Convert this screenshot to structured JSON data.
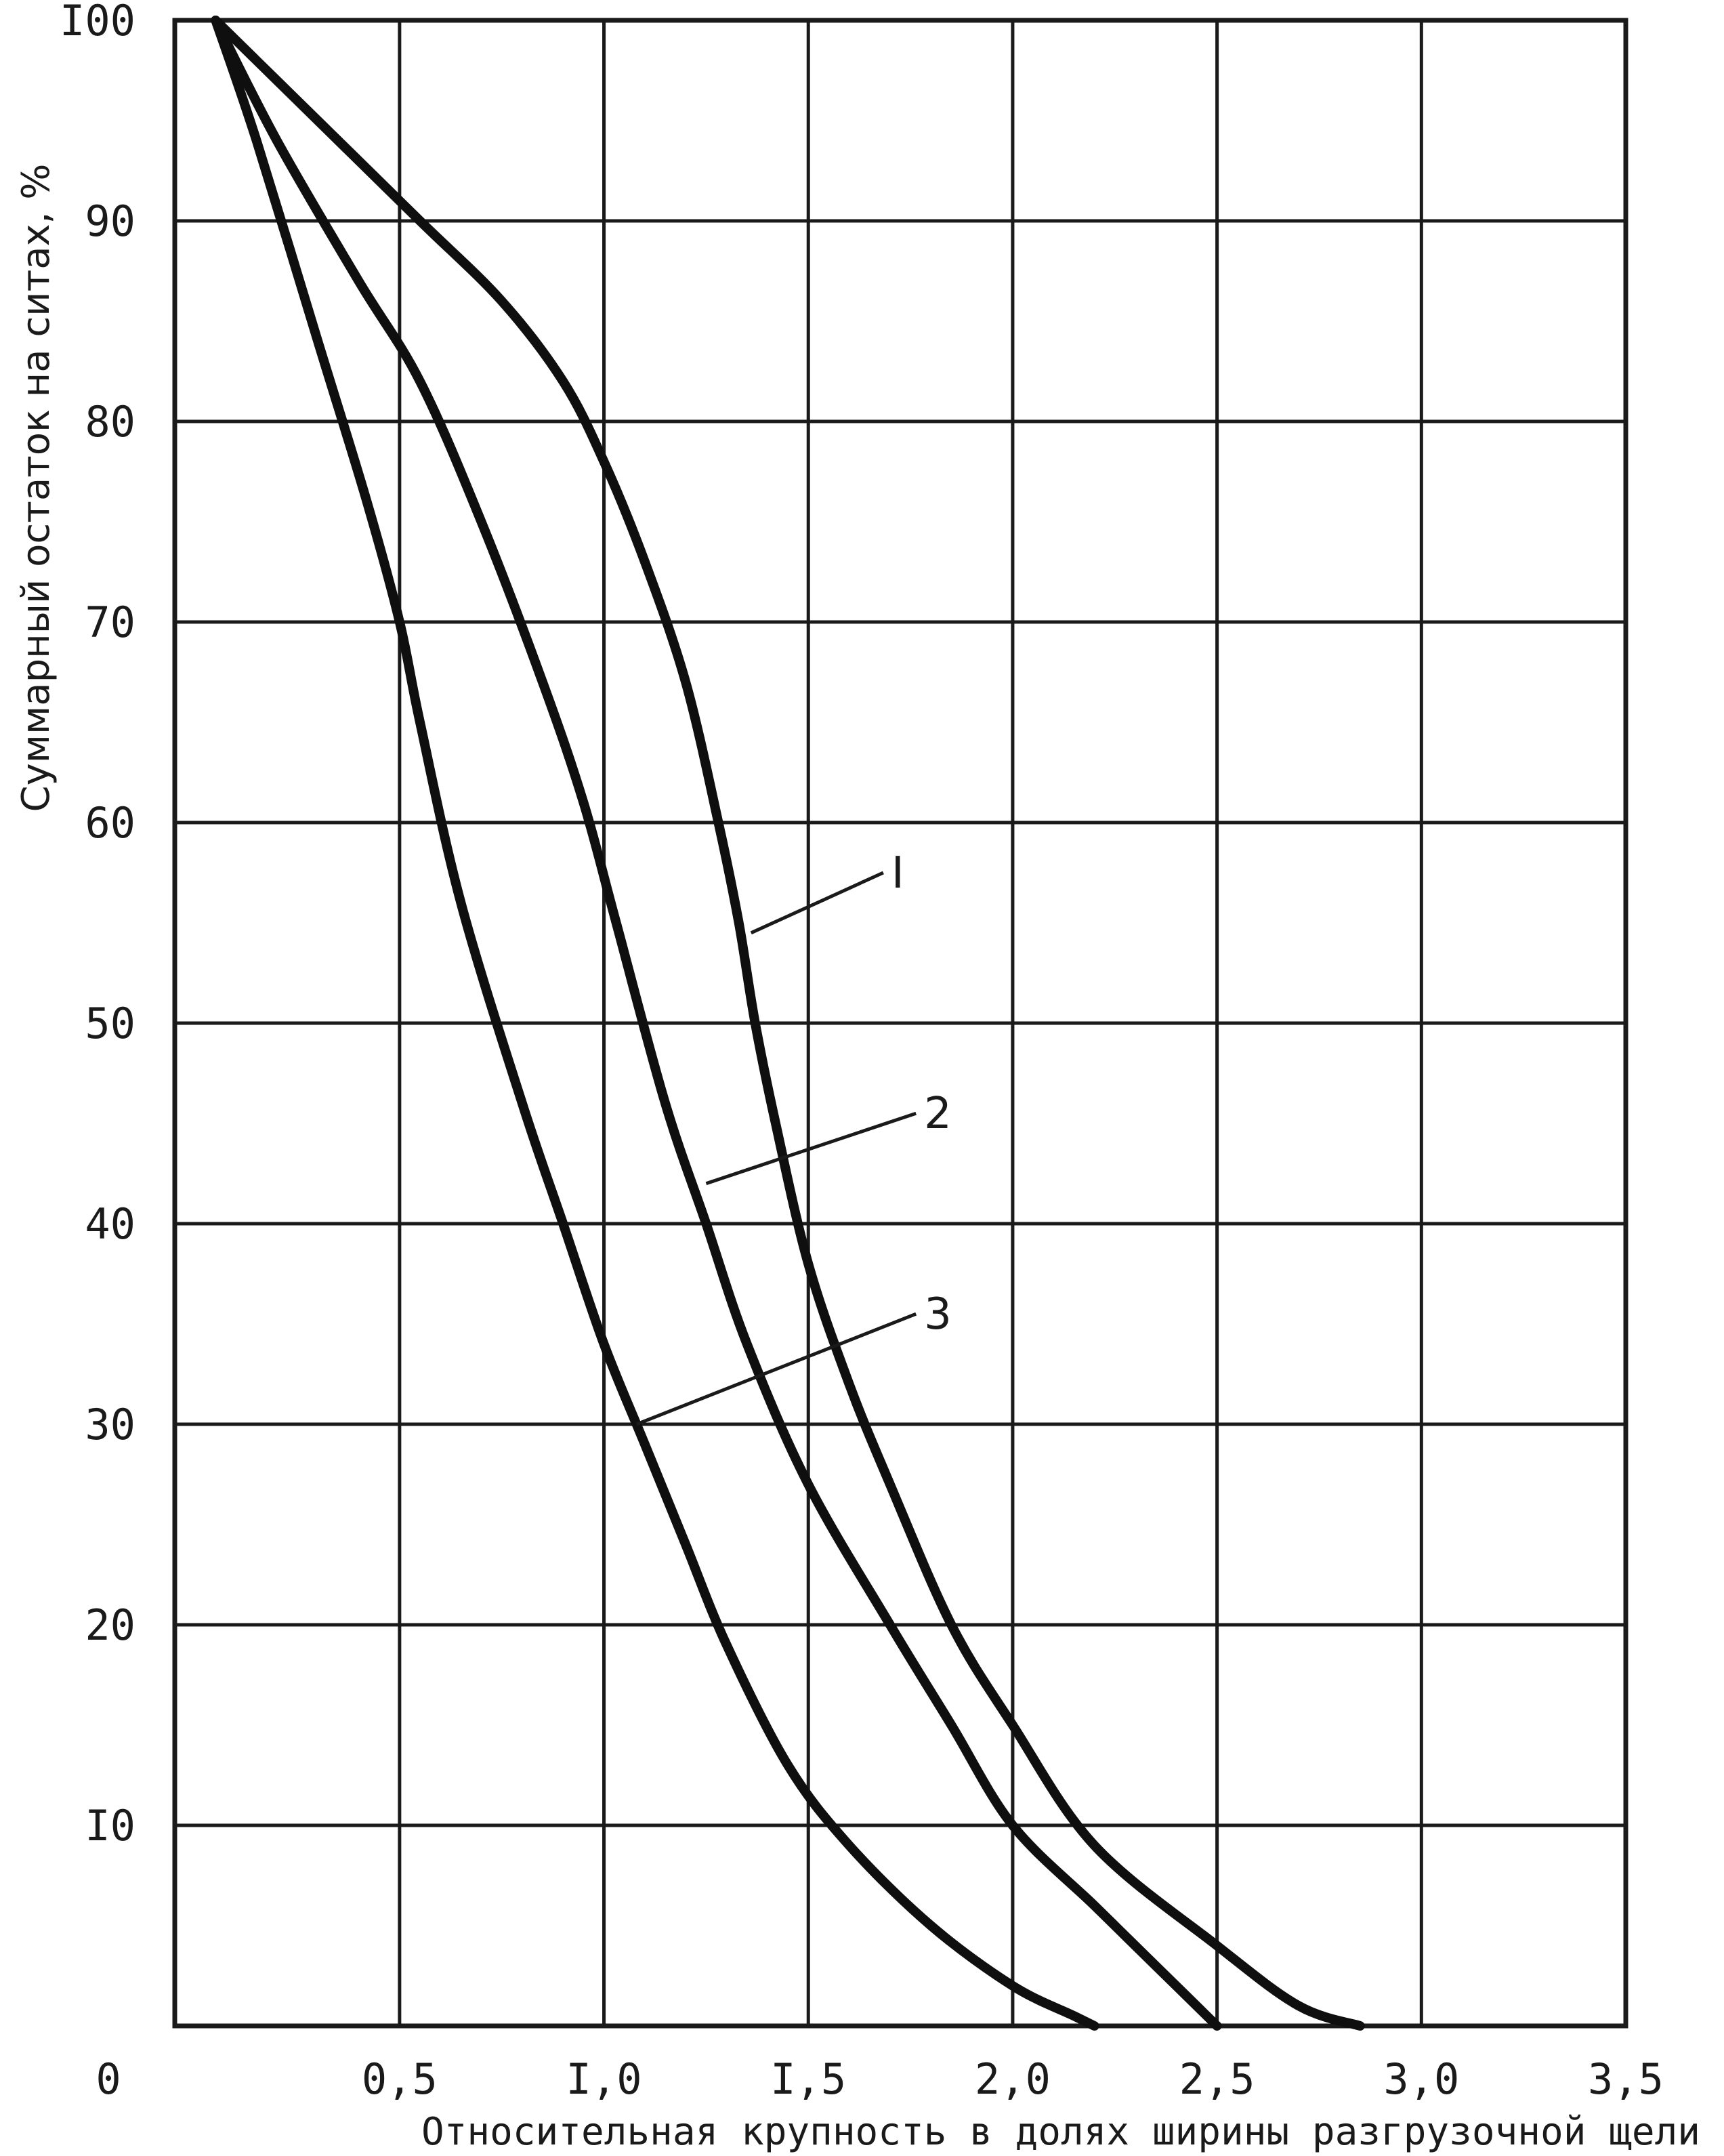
{
  "chart_data": {
    "type": "line",
    "xlabel": "Относительная крупность в долях ширины разгрузочной щели",
    "ylabel": "Суммарный остаток на ситах, %",
    "xlim": [
      -0.05,
      3.5
    ],
    "ylim": [
      0,
      100
    ],
    "grid": true,
    "x_ticks": [
      {
        "value": 0,
        "label": "0"
      },
      {
        "value": 0.5,
        "label": "0,5"
      },
      {
        "value": 1.0,
        "label": "I,0"
      },
      {
        "value": 1.5,
        "label": "I,5"
      },
      {
        "value": 2.0,
        "label": "2,0"
      },
      {
        "value": 2.5,
        "label": "2,5"
      },
      {
        "value": 3.0,
        "label": "3,0"
      },
      {
        "value": 3.5,
        "label": "3,5"
      }
    ],
    "y_ticks": [
      {
        "value": 10,
        "label": "I0"
      },
      {
        "value": 20,
        "label": "20"
      },
      {
        "value": 30,
        "label": "30"
      },
      {
        "value": 40,
        "label": "40"
      },
      {
        "value": 50,
        "label": "50"
      },
      {
        "value": 60,
        "label": "60"
      },
      {
        "value": 70,
        "label": "70"
      },
      {
        "value": 80,
        "label": "80"
      },
      {
        "value": 90,
        "label": "90"
      },
      {
        "value": 100,
        "label": "I00"
      }
    ],
    "series": [
      {
        "name": "I",
        "points": [
          [
            0.05,
            100
          ],
          [
            0.3,
            95
          ],
          [
            0.55,
            90
          ],
          [
            0.75,
            86
          ],
          [
            0.9,
            82
          ],
          [
            1.0,
            78
          ],
          [
            1.1,
            73
          ],
          [
            1.2,
            67
          ],
          [
            1.28,
            60
          ],
          [
            1.33,
            55
          ],
          [
            1.37,
            50
          ],
          [
            1.42,
            45
          ],
          [
            1.5,
            38
          ],
          [
            1.6,
            32
          ],
          [
            1.7,
            27
          ],
          [
            1.85,
            20
          ],
          [
            2.0,
            15
          ],
          [
            2.2,
            9
          ],
          [
            2.5,
            4
          ],
          [
            2.7,
            1
          ],
          [
            2.85,
            0
          ]
        ],
        "label_anchor": [
          1.36,
          54.5
        ],
        "label_pos": [
          1.7,
          57.5
        ]
      },
      {
        "name": "2",
        "points": [
          [
            0.05,
            100
          ],
          [
            0.2,
            94
          ],
          [
            0.4,
            87
          ],
          [
            0.55,
            82
          ],
          [
            0.7,
            75
          ],
          [
            0.85,
            67
          ],
          [
            0.95,
            61
          ],
          [
            1.03,
            55
          ],
          [
            1.15,
            46
          ],
          [
            1.25,
            40
          ],
          [
            1.35,
            34
          ],
          [
            1.5,
            27
          ],
          [
            1.7,
            20
          ],
          [
            1.85,
            15
          ],
          [
            2.0,
            10
          ],
          [
            2.2,
            6
          ],
          [
            2.35,
            3
          ],
          [
            2.5,
            0
          ]
        ],
        "label_anchor": [
          1.25,
          42
        ],
        "label_pos": [
          1.78,
          45.5
        ]
      },
      {
        "name": "3",
        "points": [
          [
            0.05,
            100
          ],
          [
            0.15,
            94
          ],
          [
            0.3,
            84
          ],
          [
            0.42,
            76
          ],
          [
            0.5,
            70
          ],
          [
            0.55,
            65
          ],
          [
            0.65,
            56
          ],
          [
            0.8,
            46
          ],
          [
            0.9,
            40
          ],
          [
            1.0,
            34
          ],
          [
            1.1,
            29
          ],
          [
            1.2,
            24
          ],
          [
            1.3,
            19
          ],
          [
            1.45,
            13
          ],
          [
            1.6,
            9
          ],
          [
            1.8,
            5
          ],
          [
            2.0,
            2
          ],
          [
            2.15,
            0.5
          ],
          [
            2.2,
            0
          ]
        ],
        "label_anchor": [
          1.08,
          30
        ],
        "label_pos": [
          1.78,
          35.5
        ]
      }
    ]
  }
}
